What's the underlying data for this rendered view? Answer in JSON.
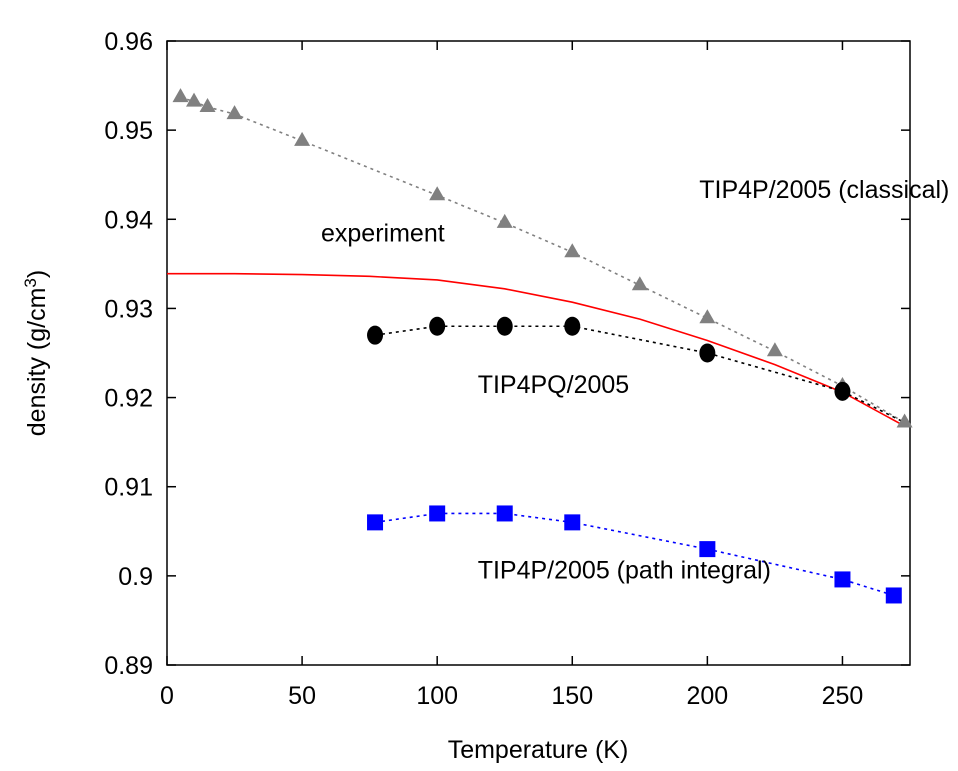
{
  "chart_data": {
    "type": "line",
    "xlabel": "Temperature (K)",
    "ylabel": "density (g/cm",
    "ylabel_sup": "3",
    "ylabel_close": ")",
    "xlim": [
      0,
      275
    ],
    "ylim": [
      0.89,
      0.96
    ],
    "xticks": [
      0,
      50,
      100,
      150,
      200,
      250
    ],
    "xtick_labels": [
      "0",
      "50",
      "100",
      "150",
      "200",
      "250"
    ],
    "yticks": [
      0.89,
      0.9,
      0.91,
      0.92,
      0.93,
      0.94,
      0.95,
      0.96
    ],
    "ytick_labels": [
      "0.89",
      "0.9",
      "0.91",
      "0.92",
      "0.93",
      "0.94",
      "0.95",
      "0.96"
    ],
    "grid": false,
    "series": [
      {
        "name": "TIP4P/2005 (classical)",
        "color": "#808080",
        "marker": "triangle",
        "linestyle": "dotted",
        "x": [
          5,
          10,
          15,
          25,
          50,
          100,
          125,
          150,
          175,
          200,
          225,
          250,
          273
        ],
        "y": [
          0.9537,
          0.9532,
          0.9526,
          0.9518,
          0.9488,
          0.9427,
          0.9396,
          0.9363,
          0.9326,
          0.9289,
          0.9252,
          0.9213,
          0.9172
        ]
      },
      {
        "name": "experiment",
        "color": "#ff0000",
        "marker": "none",
        "linestyle": "solid",
        "x": [
          0,
          25,
          50,
          75,
          100,
          125,
          150,
          175,
          200,
          225,
          250,
          273
        ],
        "y": [
          0.9339,
          0.9339,
          0.9338,
          0.9336,
          0.9332,
          0.9322,
          0.9307,
          0.9288,
          0.9264,
          0.9237,
          0.9206,
          0.9168
        ]
      },
      {
        "name": "TIP4PQ/2005",
        "color": "#000000",
        "marker": "circle",
        "linestyle": "dotted",
        "x": [
          77,
          100,
          125,
          150,
          200,
          250
        ],
        "y": [
          0.927,
          0.928,
          0.928,
          0.928,
          0.925,
          0.9207
        ],
        "line_extension": {
          "x": [
            273
          ],
          "y": [
            0.9172
          ]
        }
      },
      {
        "name": "TIP4P/2005 (path integral)",
        "color": "#0000ff",
        "marker": "square",
        "linestyle": "dotted",
        "x": [
          77,
          100,
          125,
          150,
          200,
          250,
          269
        ],
        "y": [
          0.906,
          0.907,
          0.907,
          0.906,
          0.903,
          0.8996,
          0.8978
        ]
      }
    ],
    "annotations": [
      {
        "text": "TIP4P/2005 (classical)",
        "x": 197,
        "y": 0.9424
      },
      {
        "text": "experiment",
        "x": 57,
        "y": 0.9375
      },
      {
        "text": "TIP4PQ/2005",
        "x": 115,
        "y": 0.9205
      },
      {
        "text": "TIP4P/2005 (path integral)",
        "x": 115,
        "y": 0.8997
      }
    ]
  }
}
